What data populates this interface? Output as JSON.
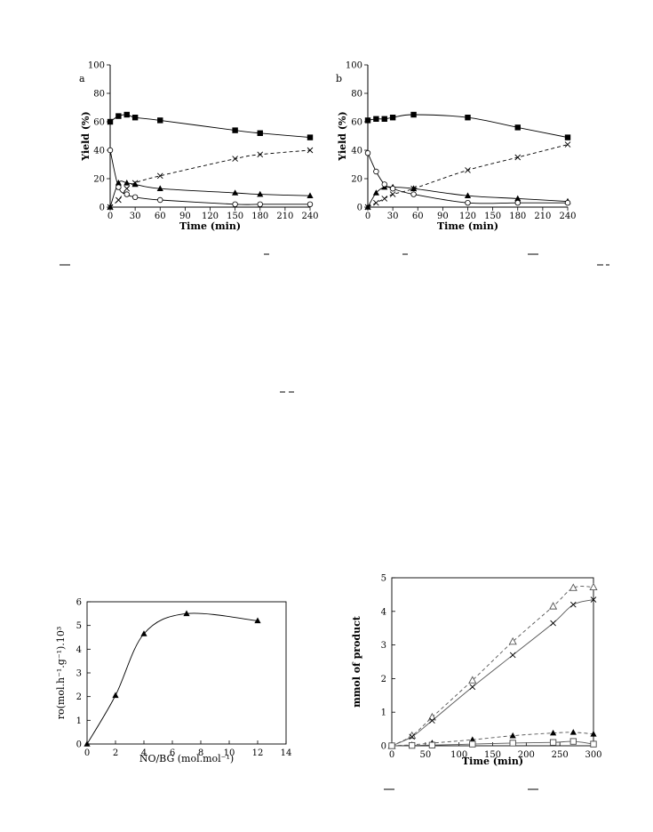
{
  "chart_data": [
    {
      "type": "line",
      "panel_label": "a",
      "xlabel": "Time (min)",
      "ylabel": "Yield (%)",
      "xlim": [
        0,
        240
      ],
      "ylim": [
        0,
        100
      ],
      "xticks": [
        "0",
        "30",
        "60",
        "90",
        "120",
        "150",
        "180",
        "210",
        "240"
      ],
      "yticks": [
        "0",
        "20",
        "40",
        "60",
        "80",
        "100"
      ],
      "series": [
        {
          "marker": "square-filled",
          "line": "solid",
          "x": [
            0,
            10,
            20,
            30,
            60,
            150,
            180,
            240
          ],
          "y": [
            60,
            64,
            65,
            63,
            61,
            54,
            52,
            49
          ]
        },
        {
          "marker": "triangle-filled",
          "line": "solid",
          "x": [
            0,
            10,
            20,
            30,
            60,
            150,
            180,
            240
          ],
          "y": [
            0,
            17,
            17,
            16,
            13,
            10,
            9,
            8
          ]
        },
        {
          "marker": "circle-open",
          "line": "solid",
          "x": [
            0,
            10,
            20,
            30,
            60,
            150,
            180,
            240
          ],
          "y": [
            40,
            14,
            9,
            7,
            5,
            2,
            2,
            2
          ]
        },
        {
          "marker": "cross",
          "line": "dashed",
          "x": [
            0,
            10,
            20,
            30,
            60,
            150,
            180,
            240
          ],
          "y": [
            0,
            5,
            13,
            17,
            22,
            34,
            37,
            40
          ]
        }
      ]
    },
    {
      "type": "line",
      "panel_label": "b",
      "xlabel": "Time (min)",
      "ylabel": "Yield (%)",
      "xlim": [
        0,
        240
      ],
      "ylim": [
        0,
        100
      ],
      "xticks": [
        "0",
        "30",
        "60",
        "90",
        "120",
        "150",
        "180",
        "210",
        "240"
      ],
      "yticks": [
        "0",
        "20",
        "40",
        "60",
        "80",
        "100"
      ],
      "series": [
        {
          "marker": "square-filled",
          "line": "solid",
          "x": [
            0,
            10,
            20,
            30,
            55,
            120,
            180,
            240
          ],
          "y": [
            61,
            62,
            62,
            63,
            65,
            63,
            56,
            49
          ]
        },
        {
          "marker": "triangle-filled",
          "line": "solid",
          "x": [
            0,
            10,
            20,
            30,
            55,
            120,
            180,
            240
          ],
          "y": [
            0,
            10,
            14,
            14,
            13,
            8,
            6,
            4
          ]
        },
        {
          "marker": "circle-open",
          "line": "solid",
          "x": [
            0,
            10,
            20,
            30,
            55,
            120,
            180,
            240
          ],
          "y": [
            38,
            25,
            16,
            13,
            9,
            3,
            3,
            3
          ]
        },
        {
          "marker": "cross",
          "line": "dashed",
          "x": [
            0,
            10,
            20,
            30,
            55,
            120,
            180,
            240
          ],
          "y": [
            0,
            3,
            6,
            9,
            13,
            26,
            35,
            44
          ]
        }
      ]
    },
    {
      "type": "scatter",
      "xlabel": "NO/BG (mol.mol⁻¹)",
      "ylabel": "ro(mol.h⁻¹.g⁻¹).10³",
      "xlim": [
        0,
        14
      ],
      "ylim": [
        0,
        6
      ],
      "xticks": [
        "0",
        "2",
        "4",
        "6",
        "8",
        "10",
        "12",
        "14"
      ],
      "yticks": [
        "0",
        "1",
        "2",
        "3",
        "4",
        "5",
        "6"
      ],
      "series": [
        {
          "marker": "triangle-filled",
          "line": "solid",
          "x": [
            0,
            2,
            4,
            7,
            12
          ],
          "y": [
            0,
            2.05,
            4.65,
            5.5,
            5.2
          ]
        }
      ]
    },
    {
      "type": "line",
      "xlabel": "Time (min)",
      "ylabel": "mmol of product",
      "xlim": [
        0,
        300
      ],
      "ylim": [
        0,
        5
      ],
      "xticks": [
        "0",
        "50",
        "100",
        "150",
        "200",
        "250",
        "300"
      ],
      "yticks": [
        "0",
        "1",
        "2",
        "3",
        "4",
        "5"
      ],
      "series": [
        {
          "marker": "triangle-open",
          "line": "dashed",
          "x": [
            0,
            30,
            60,
            120,
            180,
            240,
            270,
            300
          ],
          "y": [
            0,
            0.3,
            0.85,
            1.95,
            3.1,
            4.15,
            4.7,
            4.72
          ]
        },
        {
          "marker": "cross",
          "line": "solid",
          "x": [
            0,
            30,
            60,
            120,
            180,
            240,
            270,
            300
          ],
          "y": [
            0,
            0.27,
            0.75,
            1.75,
            2.7,
            3.65,
            4.2,
            4.35
          ]
        },
        {
          "marker": "triangle-filled",
          "line": "dashed",
          "x": [
            0,
            30,
            60,
            120,
            180,
            240,
            270,
            300
          ],
          "y": [
            0,
            0.03,
            0.08,
            0.18,
            0.3,
            0.38,
            0.4,
            0.35
          ]
        },
        {
          "marker": "square-open",
          "line": "solid",
          "x": [
            0,
            30,
            60,
            120,
            180,
            240,
            270,
            300
          ],
          "y": [
            0,
            0.01,
            0.02,
            0.05,
            0.08,
            0.1,
            0.13,
            0.05
          ]
        }
      ]
    }
  ]
}
